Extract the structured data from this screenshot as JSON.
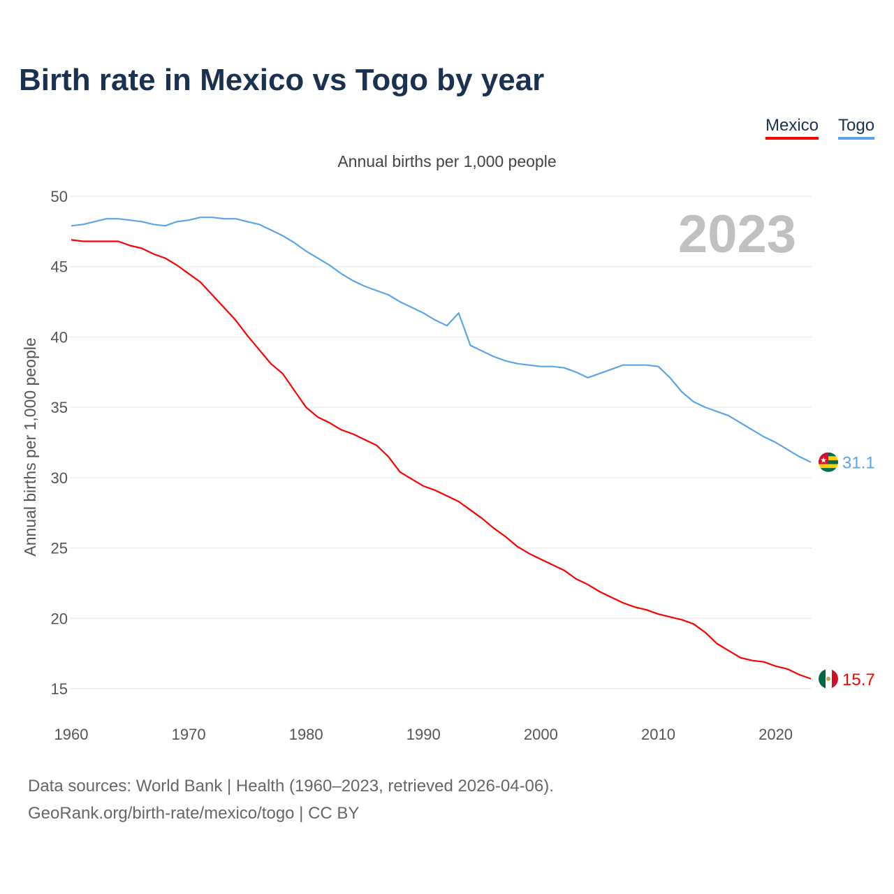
{
  "title": "Birth rate in Mexico vs Togo by year",
  "legend": [
    "Mexico",
    "Togo"
  ],
  "subtitle": "Annual births per 1,000 people",
  "year_label": "2023",
  "footer": {
    "line1": "Data sources: World Bank | Health (1960–2023, retrieved 2026-04-06).",
    "line2": "GeoRank.org/birth-rate/mexico/togo | CC BY"
  },
  "chart_data": {
    "type": "line",
    "title": "Birth rate in Mexico vs Togo by year",
    "xlabel": "",
    "ylabel": "Annual births per 1,000 people",
    "xlim": [
      1960,
      2023
    ],
    "ylim": [
      15,
      50
    ],
    "xticks": [
      1960,
      1970,
      1980,
      1990,
      2000,
      2010,
      2020
    ],
    "yticks": [
      15,
      20,
      25,
      30,
      35,
      40,
      45,
      50
    ],
    "grid": true,
    "legend_position": "top-right",
    "x_start": 1960,
    "series": [
      {
        "name": "Mexico",
        "color": "#ff0000",
        "end_label": "15.7",
        "values": [
          46.9,
          46.8,
          46.8,
          46.8,
          46.8,
          46.5,
          46.3,
          45.9,
          45.6,
          45.1,
          44.5,
          43.9,
          43.0,
          42.1,
          41.2,
          40.1,
          39.1,
          38.1,
          37.4,
          36.2,
          35.0,
          34.3,
          33.9,
          33.4,
          33.1,
          32.7,
          32.3,
          31.5,
          30.4,
          29.9,
          29.4,
          29.1,
          28.7,
          28.3,
          27.7,
          27.1,
          26.4,
          25.8,
          25.1,
          24.6,
          24.2,
          23.8,
          23.4,
          22.8,
          22.4,
          21.9,
          21.5,
          21.1,
          20.8,
          20.6,
          20.3,
          20.1,
          19.9,
          19.6,
          19.0,
          18.2,
          17.7,
          17.2,
          17.0,
          16.9,
          16.6,
          16.4,
          16.0,
          15.7
        ]
      },
      {
        "name": "Togo",
        "color": "#5aa5ea",
        "end_label": "31.1",
        "values": [
          47.9,
          48.0,
          48.2,
          48.4,
          48.4,
          48.3,
          48.2,
          48.0,
          47.9,
          48.2,
          48.3,
          48.5,
          48.5,
          48.4,
          48.4,
          48.2,
          48.0,
          47.6,
          47.2,
          46.7,
          46.1,
          45.6,
          45.1,
          44.5,
          44.0,
          43.6,
          43.3,
          43.0,
          42.5,
          42.1,
          41.7,
          41.2,
          40.8,
          41.7,
          39.4,
          39.0,
          38.6,
          38.3,
          38.1,
          38.0,
          37.9,
          37.9,
          37.8,
          37.5,
          37.1,
          37.4,
          37.7,
          38.0,
          38.0,
          38.0,
          37.9,
          37.1,
          36.1,
          35.4,
          35.0,
          34.7,
          34.4,
          33.9,
          33.4,
          32.9,
          32.5,
          32.0,
          31.5,
          31.1
        ]
      }
    ]
  }
}
